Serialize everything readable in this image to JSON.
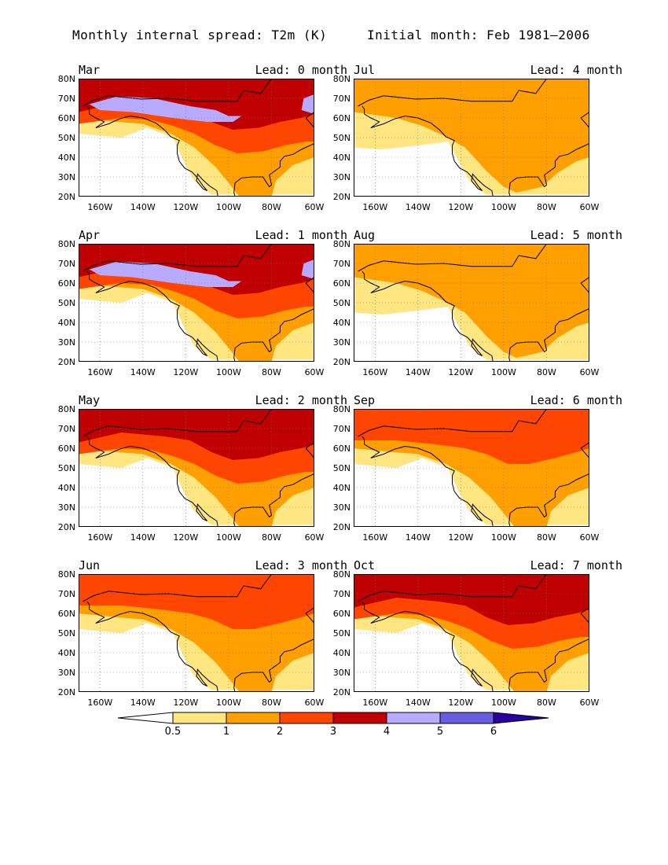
{
  "figure": {
    "title_left": "Monthly internal spread: T2m (K)",
    "title_right": "Initial month: Feb 1981–2006"
  },
  "axes": {
    "lat_labels": [
      "80N",
      "70N",
      "60N",
      "50N",
      "40N",
      "30N",
      "20N"
    ],
    "lon_labels": [
      "160W",
      "140W",
      "120W",
      "100W",
      "80W",
      "60W"
    ],
    "lat_range": [
      20,
      80
    ],
    "lon_range": [
      -170,
      -60
    ]
  },
  "panels": [
    {
      "month": "Mar",
      "lead": "Lead: 0 month",
      "levels": [
        1,
        2,
        3,
        4,
        5
      ]
    },
    {
      "month": "Jul",
      "lead": "Lead: 4 month",
      "levels": [
        1,
        2
      ]
    },
    {
      "month": "Apr",
      "lead": "Lead: 1 month",
      "levels": [
        1,
        2,
        3,
        4,
        5
      ]
    },
    {
      "month": "Aug",
      "lead": "Lead: 5 month",
      "levels": [
        1,
        2
      ]
    },
    {
      "month": "May",
      "lead": "Lead: 2 month",
      "levels": [
        1,
        2,
        3,
        4
      ]
    },
    {
      "month": "Sep",
      "lead": "Lead: 6 month",
      "levels": [
        1,
        2,
        3
      ]
    },
    {
      "month": "Jun",
      "lead": "Lead: 3 month",
      "levels": [
        1,
        2,
        3
      ]
    },
    {
      "month": "Oct",
      "lead": "Lead: 7 month",
      "levels": [
        1,
        2,
        3,
        4
      ]
    }
  ],
  "colorbar": {
    "labels": [
      "0.5",
      "1",
      "2",
      "3",
      "4",
      "5",
      "6"
    ],
    "colors": [
      "#ffffff",
      "#ffe680",
      "#ffa000",
      "#ff4500",
      "#c00000",
      "#b7aaff",
      "#6a5ce0",
      "#2a00a0"
    ]
  }
}
